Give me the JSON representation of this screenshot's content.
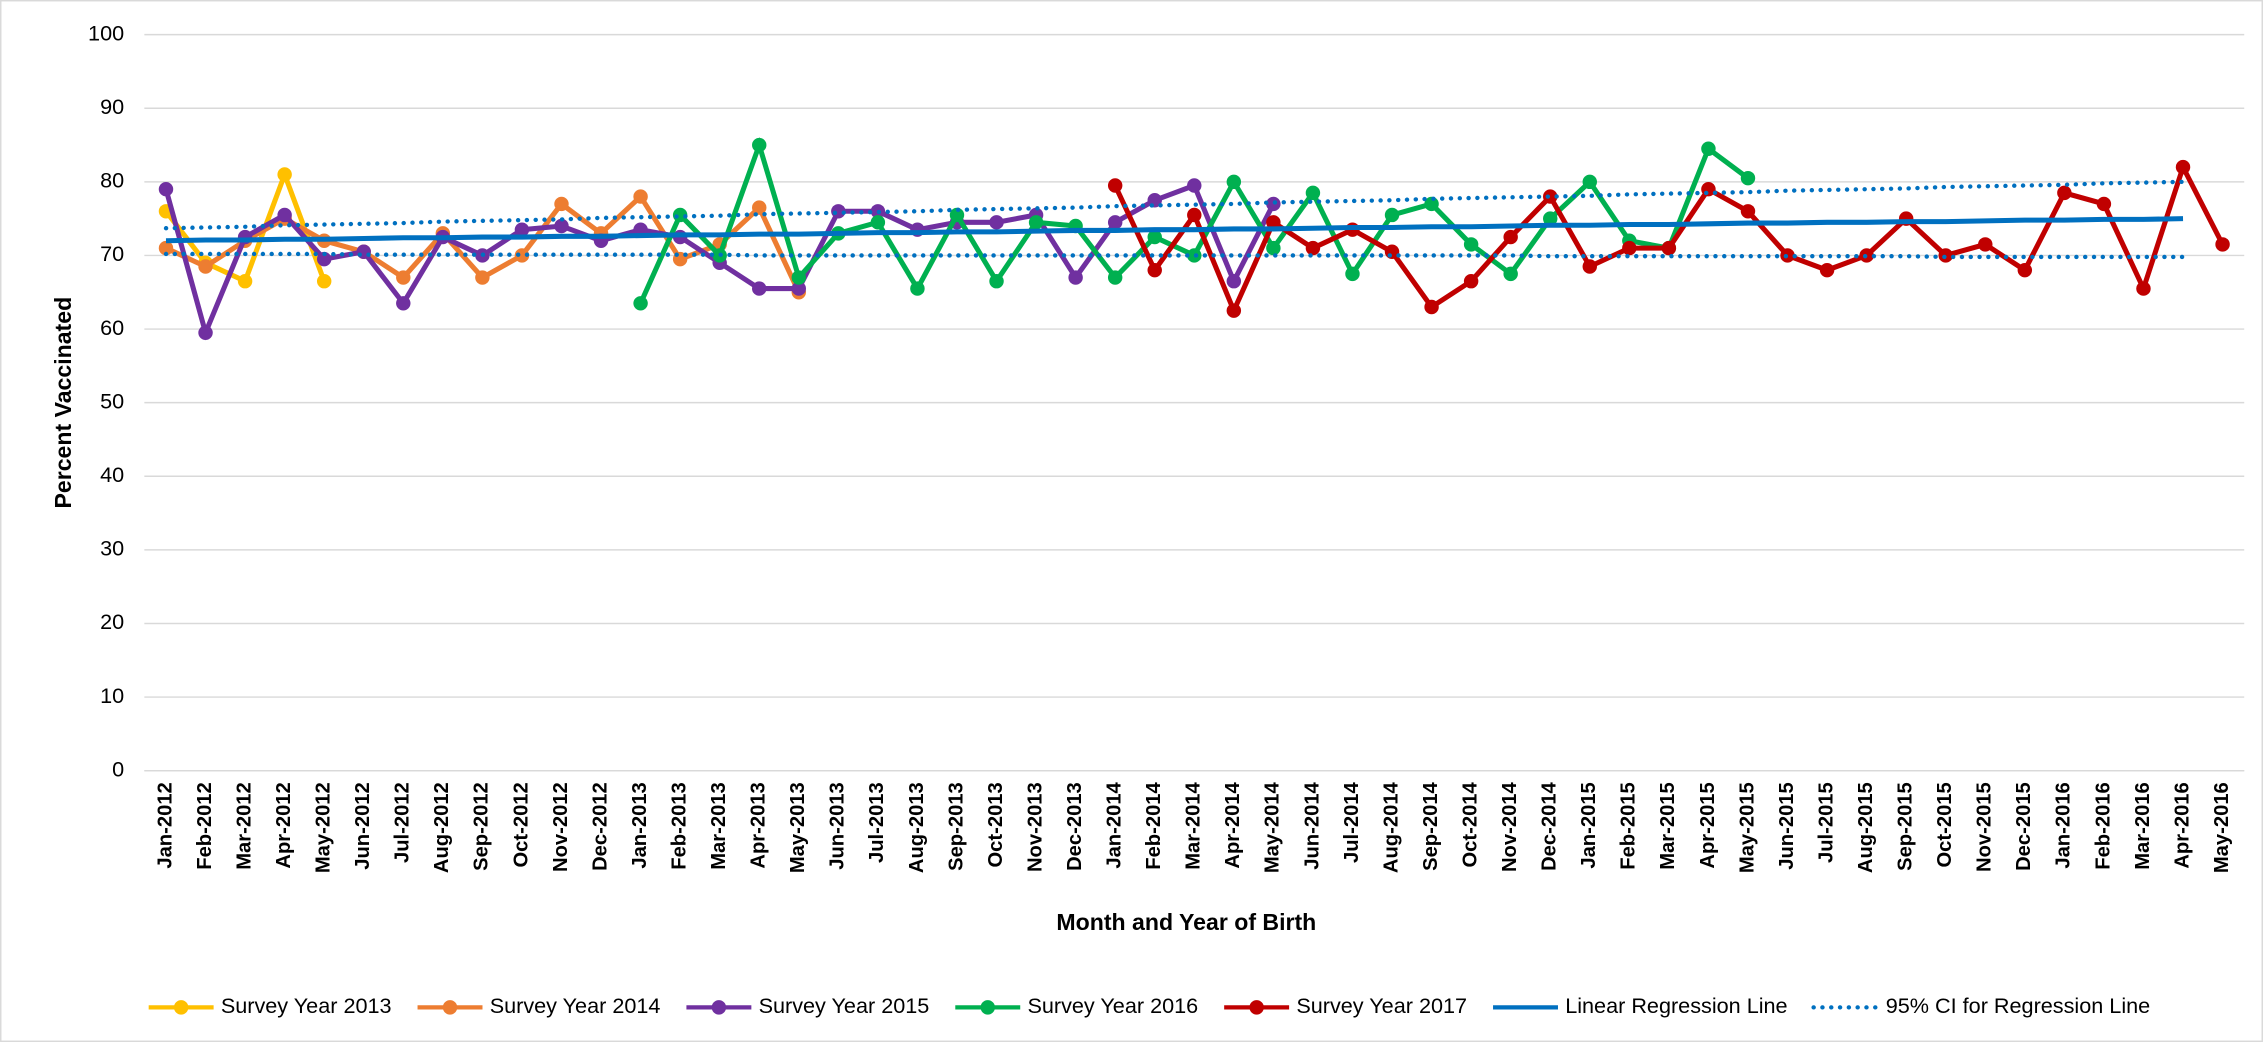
{
  "chart_data": {
    "type": "line",
    "x_axis_label": "Month and Year of Birth",
    "y_axis_label": "Percent Vaccinated",
    "categories": [
      "Jan-2012",
      "Feb-2012",
      "Mar-2012",
      "Apr-2012",
      "May-2012",
      "Jun-2012",
      "Jul-2012",
      "Aug-2012",
      "Sep-2012",
      "Oct-2012",
      "Nov-2012",
      "Dec-2012",
      "Jan-2013",
      "Feb-2013",
      "Mar-2013",
      "Apr-2013",
      "May-2013",
      "Jun-2013",
      "Jul-2013",
      "Aug-2013",
      "Sep-2013",
      "Oct-2013",
      "Nov-2013",
      "Dec-2013",
      "Jan-2014",
      "Feb-2014",
      "Mar-2014",
      "Apr-2014",
      "May-2014",
      "Jun-2014",
      "Jul-2014",
      "Aug-2014",
      "Sep-2014",
      "Oct-2014",
      "Nov-2014",
      "Dec-2014",
      "Jan-2015",
      "Feb-2015",
      "Mar-2015",
      "Apr-2015",
      "May-2015",
      "Jun-2015",
      "Jul-2015",
      "Aug-2015",
      "Sep-2015",
      "Oct-2015",
      "Nov-2015",
      "Dec-2015",
      "Jan-2016",
      "Feb-2016",
      "Mar-2016",
      "Apr-2016",
      "May-2016"
    ],
    "ylim": [
      0,
      100
    ],
    "yticks": [
      0,
      10,
      20,
      30,
      40,
      50,
      60,
      70,
      80,
      90,
      100
    ],
    "grid": true,
    "legend_position": "bottom",
    "series": [
      {
        "name": "Survey Year 2013",
        "color": "#ffc000",
        "marker": true,
        "line_style": "solid",
        "values": [
          76,
          69,
          66.5,
          81,
          66.5,
          null,
          null,
          null,
          null,
          null,
          null,
          null,
          null,
          null,
          null,
          null,
          null,
          null,
          null,
          null,
          null,
          null,
          null,
          null,
          null,
          null,
          null,
          null,
          null,
          null,
          null,
          null,
          null,
          null,
          null,
          null,
          null,
          null,
          null,
          null,
          null,
          null,
          null,
          null,
          null,
          null,
          null,
          null,
          null,
          null,
          null,
          null,
          null
        ]
      },
      {
        "name": "Survey Year 2014",
        "color": "#ed7d31",
        "marker": true,
        "line_style": "solid",
        "values": [
          71,
          68.5,
          72,
          75,
          72,
          70.5,
          67,
          73,
          67,
          70,
          77,
          73,
          78,
          69.5,
          71.5,
          76.5,
          65,
          null,
          null,
          null,
          null,
          null,
          null,
          null,
          null,
          null,
          null,
          null,
          null,
          null,
          null,
          null,
          null,
          null,
          null,
          null,
          null,
          null,
          null,
          null,
          null,
          null,
          null,
          null,
          null,
          null,
          null,
          null,
          null,
          null,
          null,
          null,
          null
        ]
      },
      {
        "name": "Survey Year 2015",
        "color": "#7030a0",
        "marker": true,
        "line_style": "solid",
        "values": [
          79,
          59.5,
          72.5,
          75.5,
          69.5,
          70.5,
          63.5,
          72.5,
          70,
          73.5,
          74,
          72,
          73.5,
          72.5,
          69,
          65.5,
          65.5,
          76,
          76,
          73.5,
          74.5,
          74.5,
          75.5,
          67,
          74.5,
          77.5,
          79.5,
          66.5,
          77,
          null,
          null,
          null,
          null,
          null,
          null,
          null,
          null,
          null,
          null,
          null,
          null,
          null,
          null,
          null,
          null,
          null,
          null,
          null,
          null,
          null,
          null,
          null,
          null
        ]
      },
      {
        "name": "Survey Year 2016",
        "color": "#00b050",
        "marker": true,
        "line_style": "solid",
        "values": [
          null,
          null,
          null,
          null,
          null,
          null,
          null,
          null,
          null,
          null,
          null,
          null,
          63.5,
          75.5,
          70,
          85,
          67,
          73,
          74.5,
          65.5,
          75.5,
          66.5,
          74.5,
          74,
          67,
          72.5,
          70,
          80,
          71,
          78.5,
          67.5,
          75.5,
          77,
          71.5,
          67.5,
          75,
          80,
          72,
          71,
          84.5,
          80.5,
          null,
          null,
          null,
          null,
          null,
          null,
          null,
          null,
          null,
          null,
          null,
          null
        ]
      },
      {
        "name": "Survey Year 2017",
        "color": "#c00000",
        "marker": true,
        "line_style": "solid",
        "values": [
          null,
          null,
          null,
          null,
          null,
          null,
          null,
          null,
          null,
          null,
          null,
          null,
          null,
          null,
          null,
          null,
          null,
          null,
          null,
          null,
          null,
          null,
          null,
          null,
          79.5,
          68,
          75.5,
          62.5,
          74.5,
          71,
          73.5,
          70.5,
          63,
          66.5,
          72.5,
          78,
          68.5,
          71,
          71,
          79,
          76,
          70,
          68,
          70,
          75,
          70,
          71.5,
          68,
          78.5,
          77,
          65.5,
          82,
          71.5
        ]
      },
      {
        "name": "Linear Regression Line",
        "color": "#0070c0",
        "marker": false,
        "line_style": "solid",
        "values": [
          72.0,
          72.1,
          72.1,
          72.2,
          72.2,
          72.3,
          72.4,
          72.4,
          72.5,
          72.5,
          72.6,
          72.6,
          72.7,
          72.8,
          72.8,
          72.9,
          72.9,
          73.0,
          73.1,
          73.1,
          73.2,
          73.2,
          73.3,
          73.4,
          73.4,
          73.5,
          73.5,
          73.6,
          73.6,
          73.7,
          73.8,
          73.8,
          73.9,
          73.9,
          74.0,
          74.1,
          74.1,
          74.2,
          74.2,
          74.3,
          74.4,
          74.4,
          74.5,
          74.5,
          74.6,
          74.6,
          74.7,
          74.8,
          74.8,
          74.9,
          74.9,
          75.0,
          null
        ]
      },
      {
        "name": "95% CI for Regression Line",
        "color": "#0070c0",
        "marker": false,
        "line_style": "dotted",
        "values": [
          73.7,
          73.8,
          73.9,
          74.1,
          74.2,
          74.3,
          74.4,
          74.6,
          74.7,
          74.8,
          74.9,
          75.1,
          75.2,
          75.3,
          75.4,
          75.6,
          75.7,
          75.8,
          75.9,
          76.0,
          76.2,
          76.3,
          76.4,
          76.5,
          76.7,
          76.8,
          76.9,
          77.0,
          77.2,
          77.3,
          77.4,
          77.5,
          77.7,
          77.8,
          77.9,
          78.0,
          78.1,
          78.3,
          78.4,
          78.5,
          78.6,
          78.8,
          78.9,
          79.0,
          79.1,
          79.3,
          79.4,
          79.5,
          79.6,
          79.8,
          79.9,
          80.0,
          null
        ],
        "lower": [
          70.2,
          70.2,
          70.2,
          70.2,
          70.2,
          70.1,
          70.1,
          70.1,
          70.1,
          70.1,
          70.1,
          70.1,
          70.1,
          70.1,
          70.1,
          70.0,
          70.0,
          70.0,
          70.0,
          70.0,
          70.0,
          70.0,
          70.0,
          70.0,
          70.0,
          70.0,
          70.0,
          70.0,
          70.0,
          70.0,
          70.0,
          70.0,
          70.0,
          70.0,
          70.0,
          69.9,
          69.9,
          69.9,
          69.9,
          69.9,
          69.9,
          69.9,
          69.9,
          69.9,
          69.9,
          69.8,
          69.8,
          69.8,
          69.8,
          69.8,
          69.8,
          69.8,
          null
        ]
      }
    ]
  }
}
